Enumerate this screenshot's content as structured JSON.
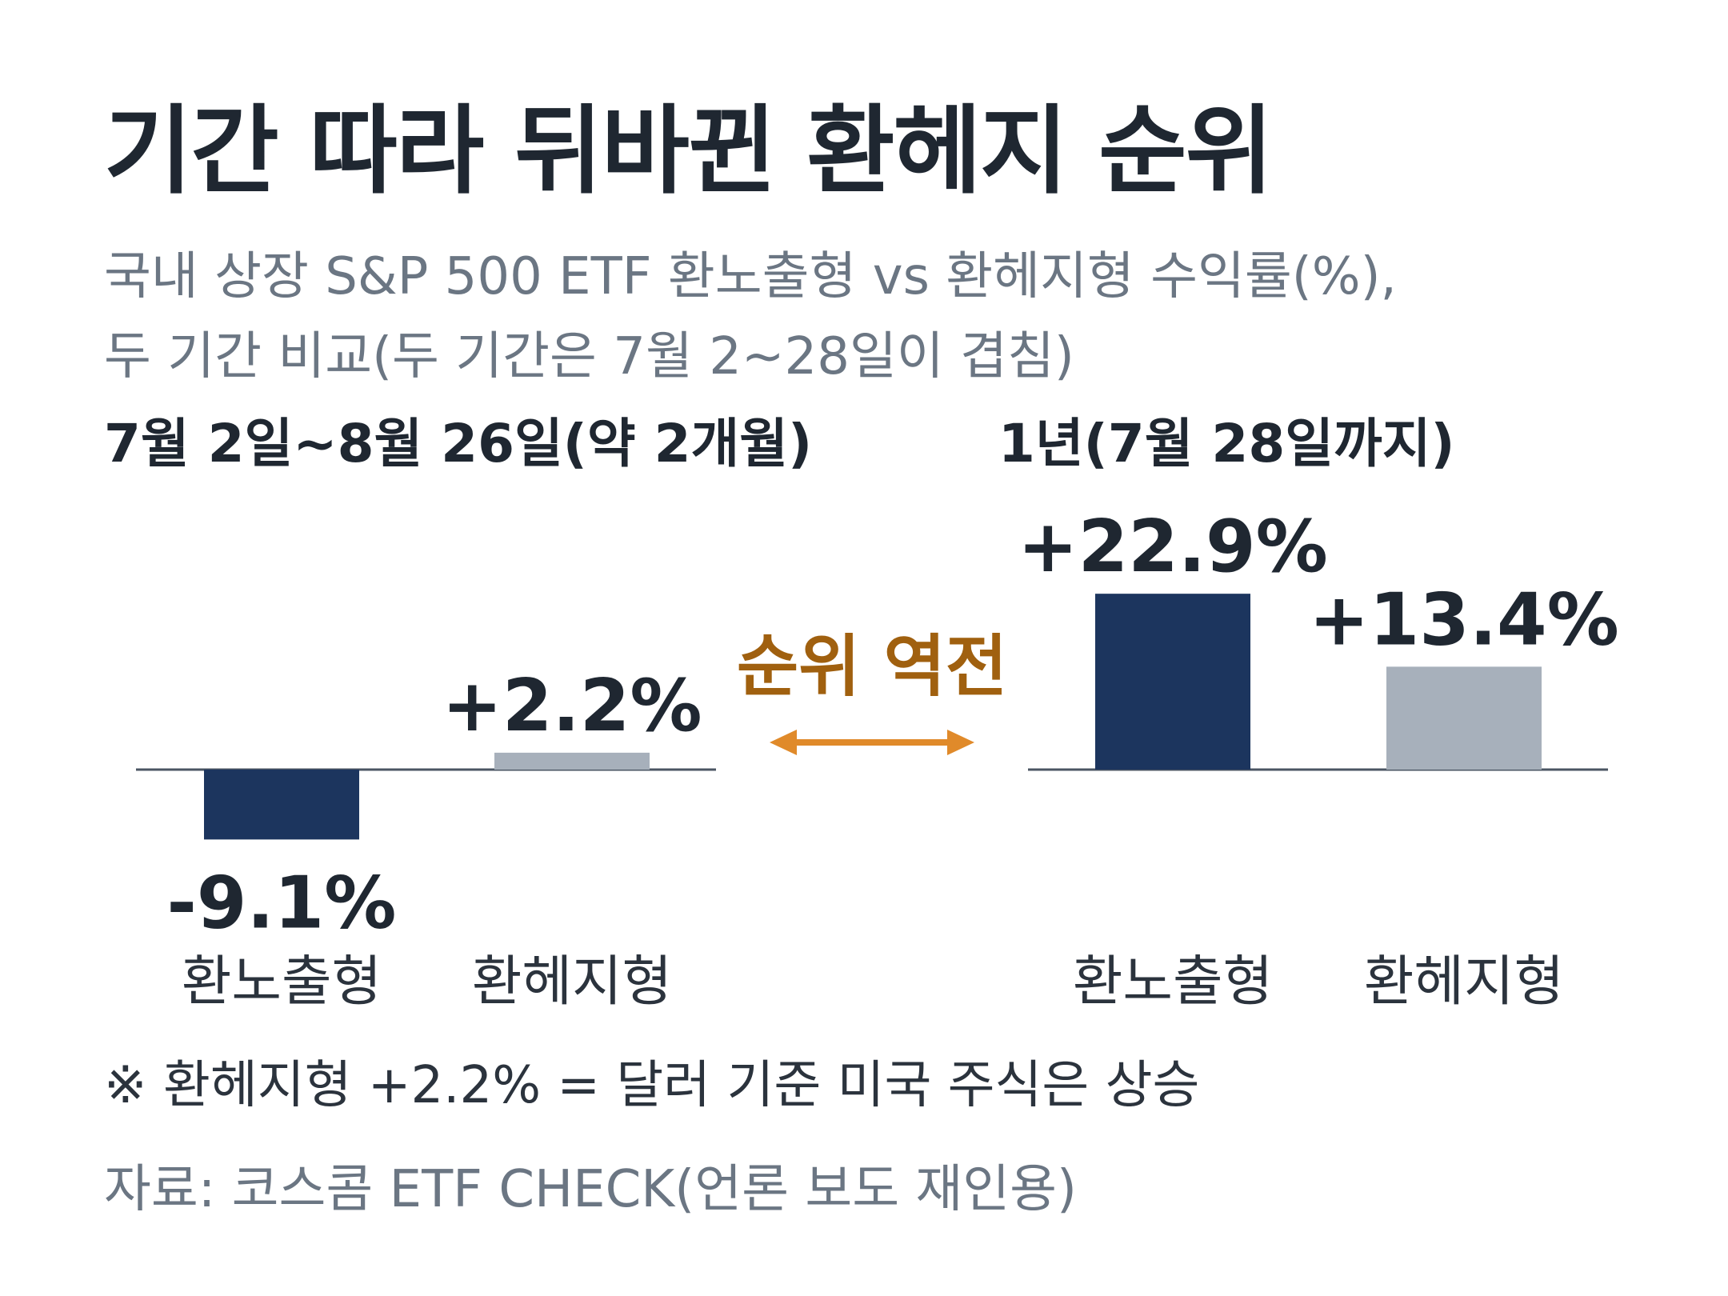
{
  "header": {
    "title": "기간 따라 뒤바뀐 환헤지 순위",
    "subtitle_lines": [
      "국내 상장 S&P 500 ETF 환노출형 vs 환헤지형 수익률(%),",
      "두 기간 비교(두 기간은 7월 2~28일이 겹침)"
    ]
  },
  "chart_data": [
    {
      "type": "bar",
      "title": "7월 2일~8월 26일(약 2개월)",
      "categories": [
        "환노출형",
        "환헤지형"
      ],
      "values": [
        -9.1,
        2.2
      ],
      "value_labels": [
        "-9.1%",
        "+2.2%"
      ],
      "colors": [
        "#1c355e",
        "#a7b0bb"
      ],
      "unit": "%",
      "grid": false
    },
    {
      "type": "bar",
      "title": "1년(7월 28일까지)",
      "categories": [
        "환노출형",
        "환헤지형"
      ],
      "values": [
        22.9,
        13.4
      ],
      "value_labels": [
        "+22.9%",
        "+13.4%"
      ],
      "colors": [
        "#1c355e",
        "#a7b0bb"
      ],
      "unit": "%",
      "grid": false
    }
  ],
  "annotation": {
    "text": "순위 역전",
    "color": "#a0600f",
    "arrow_color": "#e08a2a",
    "icon": "double-arrow-icon"
  },
  "footnote": "※ 환헤지형 +2.2% = 달러 기준 미국 주식은 상승",
  "source": "자료: 코스콤 ETF CHECK(언론 보도 재인용)"
}
